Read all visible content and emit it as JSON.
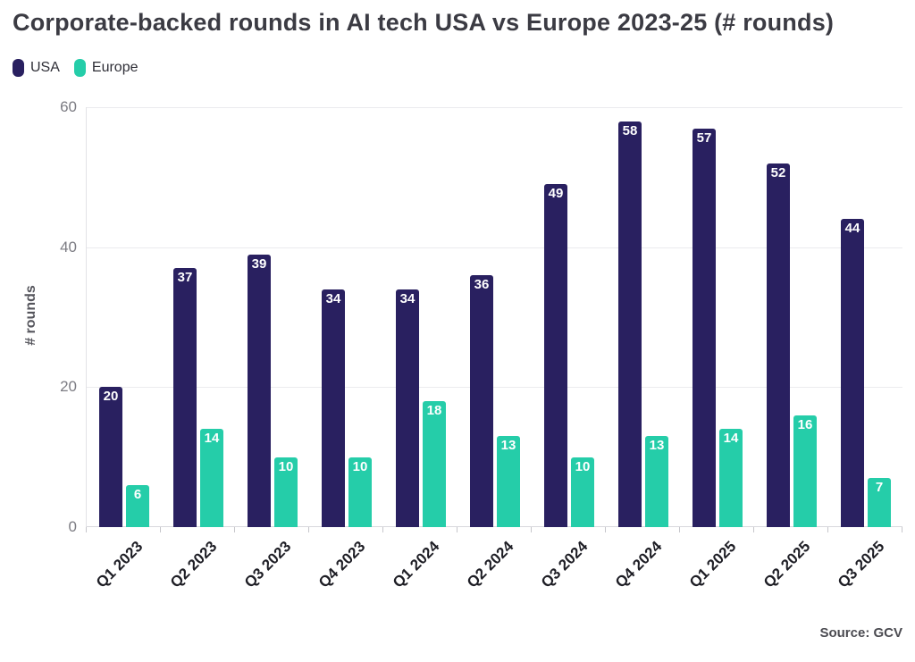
{
  "title": "Corporate-backed rounds in AI tech USA vs Europe 2023-25 (# rounds)",
  "source": "Source: GCV",
  "colors": {
    "usa": "#292060",
    "europe": "#25cda9"
  },
  "chart_data": {
    "type": "bar",
    "title": "Corporate-backed rounds in AI tech USA vs Europe 2023-25 (# rounds)",
    "categories": [
      "Q1 2023",
      "Q2 2023",
      "Q3 2023",
      "Q4 2023",
      "Q1 2024",
      "Q2 2024",
      "Q3 2024",
      "Q4 2024",
      "Q1 2025",
      "Q2 2025",
      "Q3 2025"
    ],
    "series": [
      {
        "name": "USA",
        "color": "#292060",
        "values": [
          20,
          37,
          39,
          34,
          34,
          36,
          49,
          58,
          57,
          52,
          44
        ]
      },
      {
        "name": "Europe",
        "color": "#25cda9",
        "values": [
          6,
          14,
          10,
          10,
          18,
          13,
          10,
          13,
          14,
          16,
          7
        ]
      }
    ],
    "xlabel": "",
    "ylabel": "# rounds",
    "yticks": [
      0,
      20,
      40,
      60
    ],
    "ylim": [
      0,
      60
    ],
    "grid": true,
    "legend_position": "top-left",
    "bar_value_labels": true
  }
}
